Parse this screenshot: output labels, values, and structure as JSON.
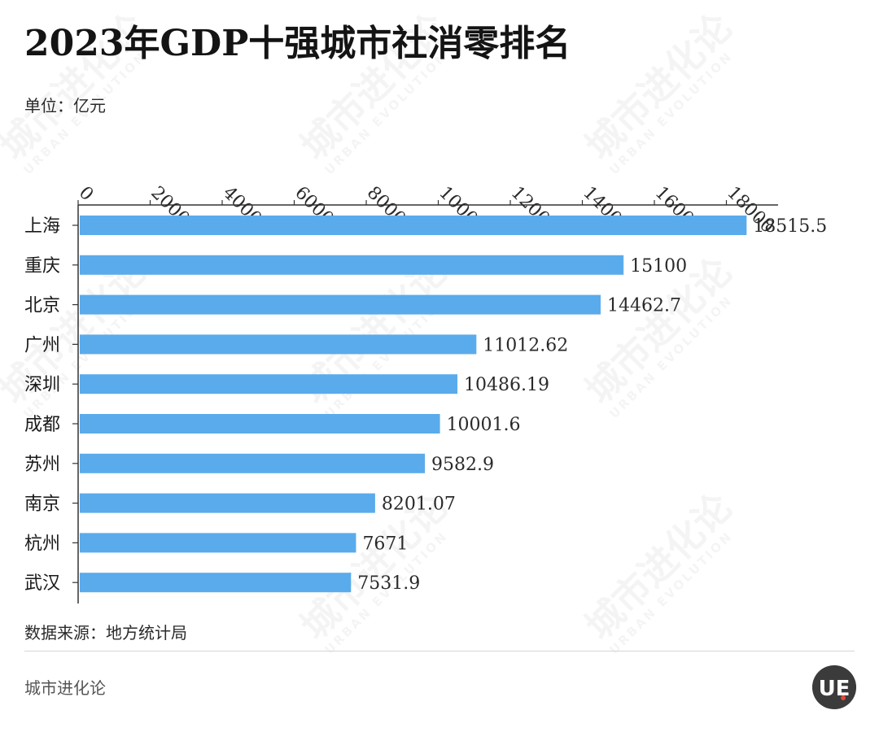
{
  "title": "2023年GDP十强城市社消零排名",
  "unit_label": "单位：亿元",
  "source_label": "数据来源：地方统计局",
  "brand_label": "城市进化论",
  "watermark": {
    "main": "城市进化论",
    "sub": "URBAN EVOLUTION"
  },
  "logo": {
    "letters": "UE"
  },
  "colors": {
    "bar": "#5aabeb",
    "axis": "#333333",
    "text": "#1a1a1a"
  },
  "chart_data": {
    "type": "bar",
    "orientation": "horizontal",
    "categories": [
      "上海",
      "重庆",
      "北京",
      "广州",
      "深圳",
      "成都",
      "苏州",
      "南京",
      "杭州",
      "武汉"
    ],
    "values": [
      18515.5,
      15100,
      14462.7,
      11012.62,
      10486.19,
      10001.6,
      9582.9,
      8201.07,
      7671,
      7531.9
    ],
    "value_labels": [
      "18515.5",
      "15100",
      "14462.7",
      "11012.62",
      "10486.19",
      "10001.6",
      "9582.9",
      "8201.07",
      "7671",
      "7531.9"
    ],
    "ticks": [
      0,
      2000,
      4000,
      6000,
      8000,
      10000,
      12000,
      14000,
      16000,
      18000
    ],
    "tick_labels": [
      "0",
      "2000",
      "4000",
      "6000",
      "8000",
      "10000",
      "12000",
      "14000",
      "16000",
      "18000"
    ],
    "xlim": [
      0,
      19500
    ],
    "axis_position": "top",
    "grid": false,
    "title": "2023年GDP十强城市社消零排名",
    "xlabel": "",
    "ylabel": ""
  }
}
